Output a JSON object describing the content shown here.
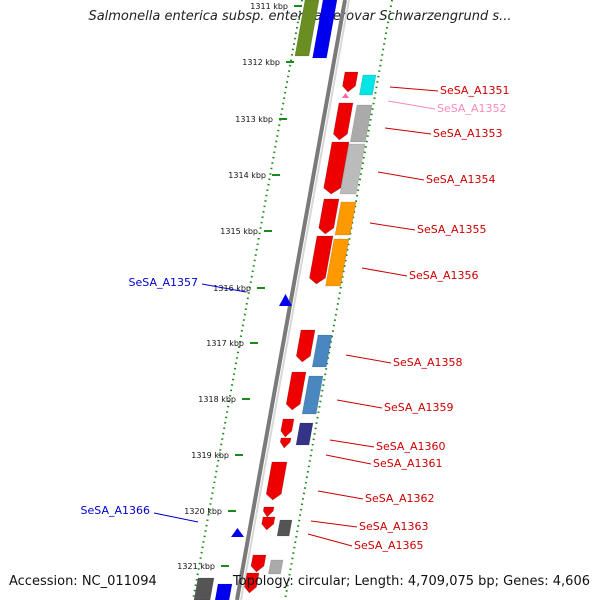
{
  "title": "Salmonella enterica subsp. enterica serovar Schwarzengrund s...",
  "footer": {
    "accession": "Accession: NC_011094",
    "summary": "Topology: circular; Length: 4,709,075 bp; Genes: 4,606"
  },
  "colors": {
    "backbone": "#7a7a7a",
    "ruler_dots": "#1a8a1a",
    "red_label": "#cc0000",
    "blue_label": "#0000cc",
    "pink_label": "#ff88bb"
  },
  "ticks": [
    {
      "label": "1311 kbp"
    },
    {
      "label": "1312 kbp"
    },
    {
      "label": "1313 kbp"
    },
    {
      "label": "1314 kbp"
    },
    {
      "label": "1315 kbp"
    },
    {
      "label": "1316 kbp"
    },
    {
      "label": "1317 kbp"
    },
    {
      "label": "1318 kbp"
    },
    {
      "label": "1319 kbp"
    },
    {
      "label": "1320 kbp"
    },
    {
      "label": "1321 kbp"
    }
  ],
  "gene_labels": [
    {
      "text": "SeSA_A1351",
      "color": "#cc0000"
    },
    {
      "text": "SeSA_A1352",
      "color": "#ff88bb"
    },
    {
      "text": "SeSA_A1353",
      "color": "#cc0000"
    },
    {
      "text": "SeSA_A1354",
      "color": "#cc0000"
    },
    {
      "text": "SeSA_A1355",
      "color": "#cc0000"
    },
    {
      "text": "SeSA_A1356",
      "color": "#cc0000"
    },
    {
      "text": "SeSA_A1358",
      "color": "#cc0000"
    },
    {
      "text": "SeSA_A1359",
      "color": "#cc0000"
    },
    {
      "text": "SeSA_A1360",
      "color": "#cc0000"
    },
    {
      "text": "SeSA_A1361",
      "color": "#cc0000"
    },
    {
      "text": "SeSA_A1362",
      "color": "#cc0000"
    },
    {
      "text": "SeSA_A1363",
      "color": "#cc0000"
    },
    {
      "text": "SeSA_A1365",
      "color": "#cc0000"
    },
    {
      "text": "SeSA_A1357",
      "color": "#0000cc"
    },
    {
      "text": "SeSA_A1366",
      "color": "#0000cc"
    }
  ]
}
